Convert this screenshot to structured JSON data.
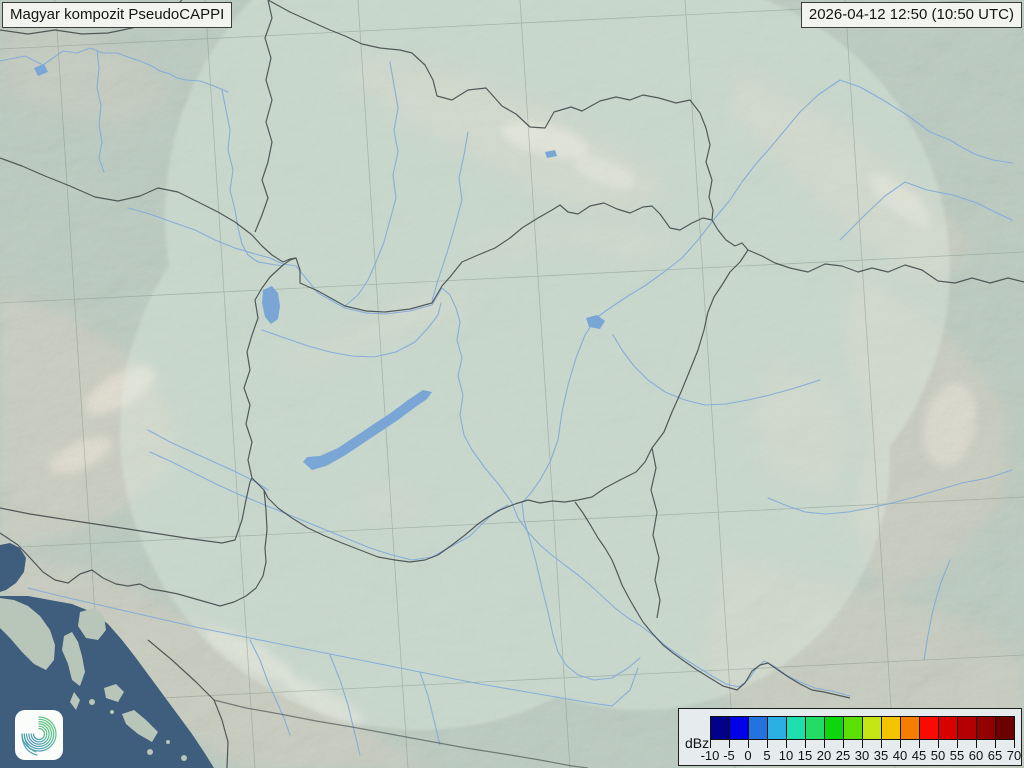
{
  "header": {
    "product_title": "Magyar kompozit  PseudoCAPPI",
    "timestamp": "2026-04-12 12:50 (10:50 UTC)"
  },
  "legend": {
    "unit_label": "dBz",
    "tick_labels": [
      "-10",
      "-5",
      "0",
      "5",
      "10",
      "15",
      "20",
      "25",
      "30",
      "35",
      "40",
      "45",
      "50",
      "55",
      "60",
      "65",
      "70"
    ],
    "colors": [
      "#000089",
      "#0000e8",
      "#2273de",
      "#2baee4",
      "#1cdfac",
      "#23dc66",
      "#0cd60c",
      "#5cdf04",
      "#c4e414",
      "#f2c500",
      "#f57e00",
      "#fa0a00",
      "#d90000",
      "#b40000",
      "#940000",
      "#6c0000"
    ]
  },
  "map": {
    "colors": {
      "land_base": "#a9beb1",
      "coverage_tint": "#e4f2e6",
      "sea": "#3f5d7c",
      "river": "#84abd8",
      "lake": "#7aa6d6",
      "border": "#3d4346",
      "grid": "#7d8d85",
      "mountain": "#cdc2ae",
      "ridge": "#ece4d4",
      "island": "#b7c6b8"
    },
    "logo": "hungaromet-spiral-logo"
  }
}
